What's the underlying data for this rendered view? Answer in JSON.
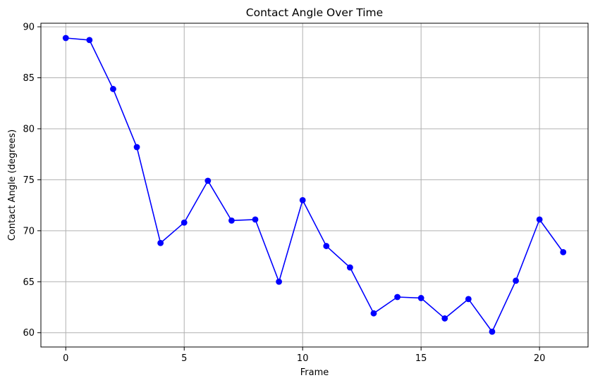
{
  "chart_data": {
    "type": "line",
    "title": "Contact Angle Over Time",
    "xlabel": "Frame",
    "ylabel": "Contact Angle (degrees)",
    "xlim": [
      -1.05,
      22.05
    ],
    "ylim": [
      58.6,
      90.35
    ],
    "xticks": [
      0,
      5,
      10,
      15,
      20
    ],
    "yticks": [
      60,
      65,
      70,
      75,
      80,
      85,
      90
    ],
    "grid": true,
    "legend": "none",
    "series": [
      {
        "color": "#0000ff",
        "marker": "circle",
        "x": [
          0,
          1,
          2,
          3,
          4,
          5,
          6,
          7,
          8,
          9,
          10,
          11,
          12,
          13,
          14,
          15,
          16,
          17,
          18,
          19,
          20,
          21
        ],
        "values": [
          88.9,
          88.7,
          83.9,
          78.2,
          68.8,
          70.8,
          74.9,
          71.0,
          71.1,
          65.0,
          73.0,
          68.5,
          66.4,
          61.9,
          63.5,
          63.4,
          61.4,
          63.3,
          60.1,
          65.1,
          71.1,
          67.9
        ]
      }
    ]
  }
}
